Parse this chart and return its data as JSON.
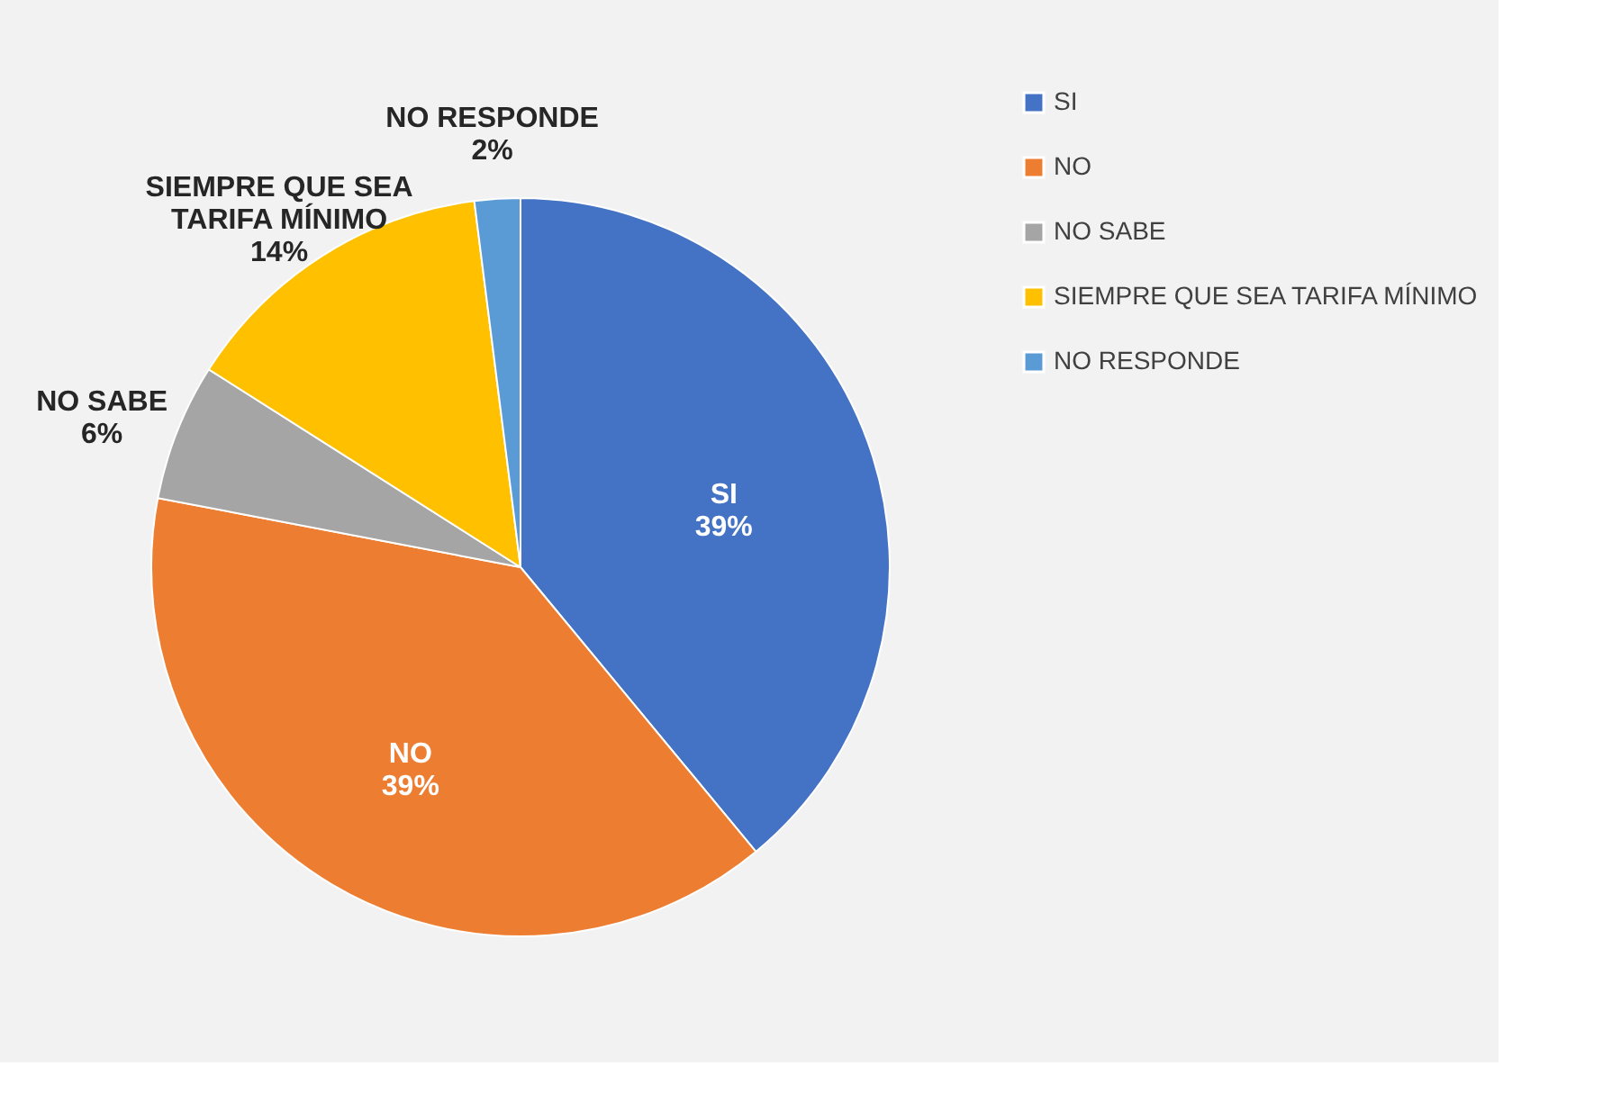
{
  "chart_data": {
    "type": "pie",
    "categories": [
      "SI",
      "NO",
      "NO SABE",
      "SIEMPRE QUE SEA TARIFA MÍNIMO",
      "NO RESPONDE"
    ],
    "values": [
      39,
      39,
      6,
      14,
      2
    ],
    "colors": [
      "#4472c4",
      "#ed7d31",
      "#a5a5a5",
      "#ffc000",
      "#5b9bd5"
    ],
    "value_labels": [
      "39%",
      "39%",
      "6%",
      "14%",
      "2%"
    ],
    "legend": "right"
  }
}
